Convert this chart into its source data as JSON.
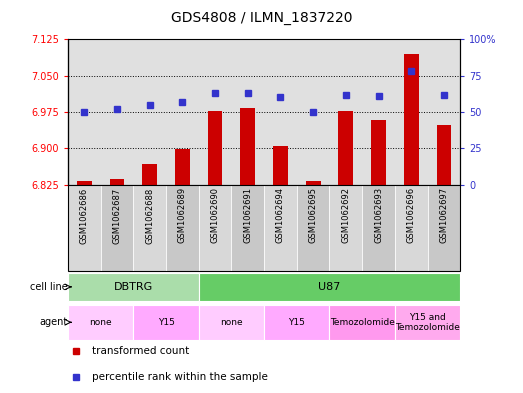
{
  "title": "GDS4808 / ILMN_1837220",
  "samples": [
    "GSM1062686",
    "GSM1062687",
    "GSM1062688",
    "GSM1062689",
    "GSM1062690",
    "GSM1062691",
    "GSM1062694",
    "GSM1062695",
    "GSM1062692",
    "GSM1062693",
    "GSM1062696",
    "GSM1062697"
  ],
  "transformed_count": [
    6.832,
    6.836,
    6.868,
    6.898,
    6.978,
    6.983,
    6.905,
    6.833,
    6.978,
    6.958,
    7.095,
    6.948
  ],
  "percentile_rank": [
    50,
    52,
    55,
    57,
    63,
    63,
    60,
    50,
    62,
    61,
    78,
    62
  ],
  "ylim_left": [
    6.825,
    7.125
  ],
  "ylim_right": [
    0,
    100
  ],
  "yticks_left": [
    6.825,
    6.9,
    6.975,
    7.05,
    7.125
  ],
  "yticks_right": [
    0,
    25,
    50,
    75,
    100
  ],
  "bar_color": "#cc0000",
  "dot_color": "#3333cc",
  "bar_baseline": 6.825,
  "col_bg_colors": [
    "#d0d0d0",
    "#c0c0c0"
  ],
  "cell_line_groups": [
    {
      "label": "DBTRG",
      "start": 0,
      "end": 4,
      "color": "#aaddaa"
    },
    {
      "label": "U87",
      "start": 4,
      "end": 12,
      "color": "#66cc66"
    }
  ],
  "agent_groups": [
    {
      "label": "none",
      "start": 0,
      "end": 2,
      "color": "#ffccff"
    },
    {
      "label": "Y15",
      "start": 2,
      "end": 4,
      "color": "#ffaaff"
    },
    {
      "label": "none",
      "start": 4,
      "end": 6,
      "color": "#ffccff"
    },
    {
      "label": "Y15",
      "start": 6,
      "end": 8,
      "color": "#ffaaff"
    },
    {
      "label": "Temozolomide",
      "start": 8,
      "end": 10,
      "color": "#ff99ee"
    },
    {
      "label": "Y15 and\nTemozolomide",
      "start": 10,
      "end": 12,
      "color": "#ffaaee"
    }
  ],
  "legend_items": [
    {
      "label": "transformed count",
      "color": "#cc0000"
    },
    {
      "label": "percentile rank within the sample",
      "color": "#3333cc"
    }
  ],
  "cell_line_label": "cell line",
  "agent_label": "agent",
  "chart_bg": "#e0e0e0",
  "grid_yticks": [
    6.9,
    6.975,
    7.05
  ]
}
